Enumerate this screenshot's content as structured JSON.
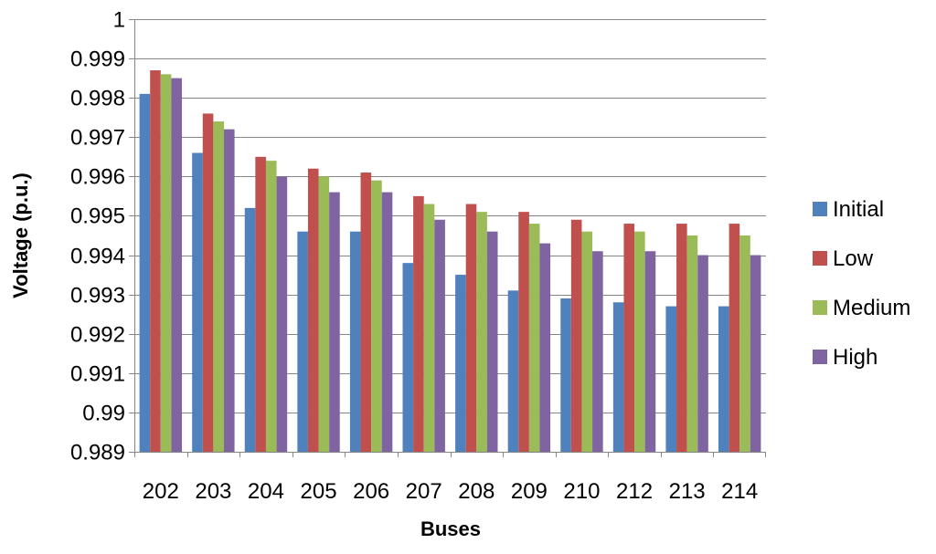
{
  "chart_data": {
    "type": "bar",
    "title": "",
    "xlabel": "Buses",
    "ylabel": "Voltage (p.u.)",
    "ylim": [
      0.989,
      1
    ],
    "ytick_step": 0.001,
    "yticks": [
      "0.989",
      "0.99",
      "0.991",
      "0.992",
      "0.993",
      "0.994",
      "0.995",
      "0.996",
      "0.997",
      "0.998",
      "0.999",
      "1"
    ],
    "grid": "horizontal",
    "legend_position": "right",
    "categories": [
      "202",
      "203",
      "204",
      "205",
      "206",
      "207",
      "208",
      "209",
      "210",
      "212",
      "213",
      "214"
    ],
    "series": [
      {
        "name": "Initial",
        "color": "#4F81BD",
        "values": [
          0.9981,
          0.9966,
          0.9952,
          0.9946,
          0.9946,
          0.9938,
          0.9935,
          0.9931,
          0.9929,
          0.9928,
          0.9927,
          0.9927
        ]
      },
      {
        "name": "Low",
        "color": "#C0504D",
        "values": [
          0.9987,
          0.9976,
          0.9965,
          0.9962,
          0.9961,
          0.9955,
          0.9953,
          0.9951,
          0.9949,
          0.9948,
          0.9948,
          0.9948
        ]
      },
      {
        "name": "Medium",
        "color": "#9BBB59",
        "values": [
          0.9986,
          0.9974,
          0.9964,
          0.996,
          0.9959,
          0.9953,
          0.9951,
          0.9948,
          0.9946,
          0.9946,
          0.9945,
          0.9945
        ]
      },
      {
        "name": "High",
        "color": "#8064A2",
        "values": [
          0.9985,
          0.9972,
          0.996,
          0.9956,
          0.9956,
          0.9949,
          0.9946,
          0.9943,
          0.9941,
          0.9941,
          0.994,
          0.994
        ]
      }
    ]
  }
}
